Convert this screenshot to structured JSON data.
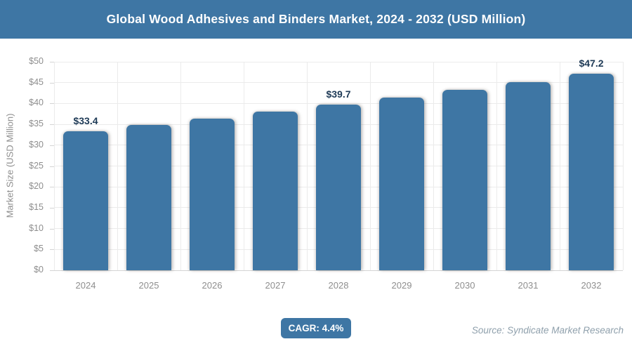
{
  "header": {
    "title": "Global Wood Adhesives and Binders Market, 2024 - 2032 (USD Million)"
  },
  "chart_data": {
    "type": "bar",
    "title": "Global Wood Adhesives and Binders Market, 2024 - 2032 (USD Million)",
    "categories": [
      "2024",
      "2025",
      "2026",
      "2027",
      "2028",
      "2029",
      "2030",
      "2031",
      "2032"
    ],
    "values": [
      33.4,
      34.9,
      36.4,
      38.0,
      39.7,
      41.4,
      43.2,
      45.2,
      47.2
    ],
    "value_labels": [
      "$33.4",
      null,
      null,
      null,
      "$39.7",
      null,
      null,
      null,
      "$47.2"
    ],
    "xlabel": "",
    "ylabel": "Market Size (USD Million)",
    "ylim": [
      0,
      50
    ],
    "ytick_step": 5,
    "ytick_prefix": "$",
    "grid": true,
    "legend": "none",
    "bar_color": "#3E76A4"
  },
  "footer": {
    "cagr_label": "CAGR: 4.4%",
    "source": "Source: Syndicate Market Research"
  },
  "colors": {
    "accent": "#3E76A4",
    "bar": "#3E76A4",
    "value_label_text": "#1E3A56",
    "axis_text": "#8E8E8E",
    "gridline": "#EBEBEB",
    "source_text": "#8FA0AC",
    "title_text": "#FFFFFF"
  }
}
